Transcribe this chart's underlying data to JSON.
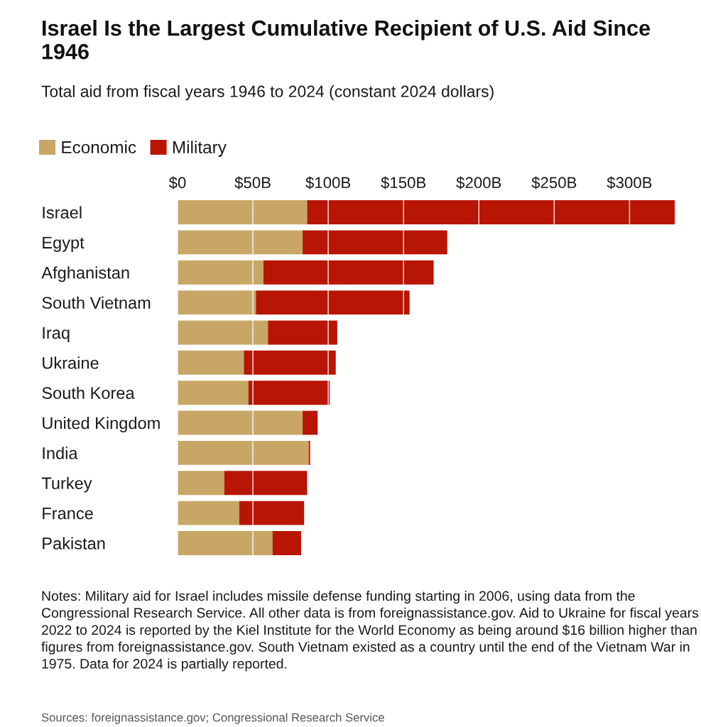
{
  "chart_data": {
    "type": "bar",
    "orientation": "horizontal",
    "stacked": true,
    "title": "Israel Is the Largest Cumulative Recipient of U.S. Aid Since 1946",
    "subtitle": "Total aid from fiscal years 1946 to 2024 (constant 2024 dollars)",
    "categories": [
      "Israel",
      "Egypt",
      "Afghanistan",
      "South Vietnam",
      "Iraq",
      "Ukraine",
      "South Korea",
      "United Kingdom",
      "India",
      "Turkey",
      "France",
      "Pakistan"
    ],
    "series": [
      {
        "name": "Economic",
        "color": "#c8a766",
        "values": [
          86,
          83,
          57,
          52,
          60,
          44,
          47,
          83,
          87,
          31,
          41,
          63
        ]
      },
      {
        "name": "Military",
        "color": "#b81505",
        "values": [
          244,
          96,
          113,
          102,
          46,
          61,
          54,
          10,
          1,
          55,
          43,
          19
        ]
      }
    ],
    "xlim": [
      0,
      330
    ],
    "xticks": [
      {
        "value": 0,
        "label": "$0"
      },
      {
        "value": 50,
        "label": "$50B"
      },
      {
        "value": 100,
        "label": "$100B"
      },
      {
        "value": 150,
        "label": "$150B"
      },
      {
        "value": 200,
        "label": "$200B"
      },
      {
        "value": 250,
        "label": "$250B"
      },
      {
        "value": 300,
        "label": "$300B"
      }
    ],
    "grid": "x",
    "legend": "top left",
    "annotations": [
      "Notes: Military aid for Israel includes missile defense funding starting in 2006, using data from the Congressional Research Service. All other data is from foreignassistance.gov. Aid to Ukraine for fiscal years 2022 to 2024 is reported by the Kiel Institute for the World Economy as being around $16 billion higher than figures from foreignassistance.gov. South Vietnam existed as a country until the end of the Vietnam War in 1975. Data for 2024 is partially reported.",
      "Sources: foreignassistance.gov; Congressional Research Service"
    ]
  }
}
